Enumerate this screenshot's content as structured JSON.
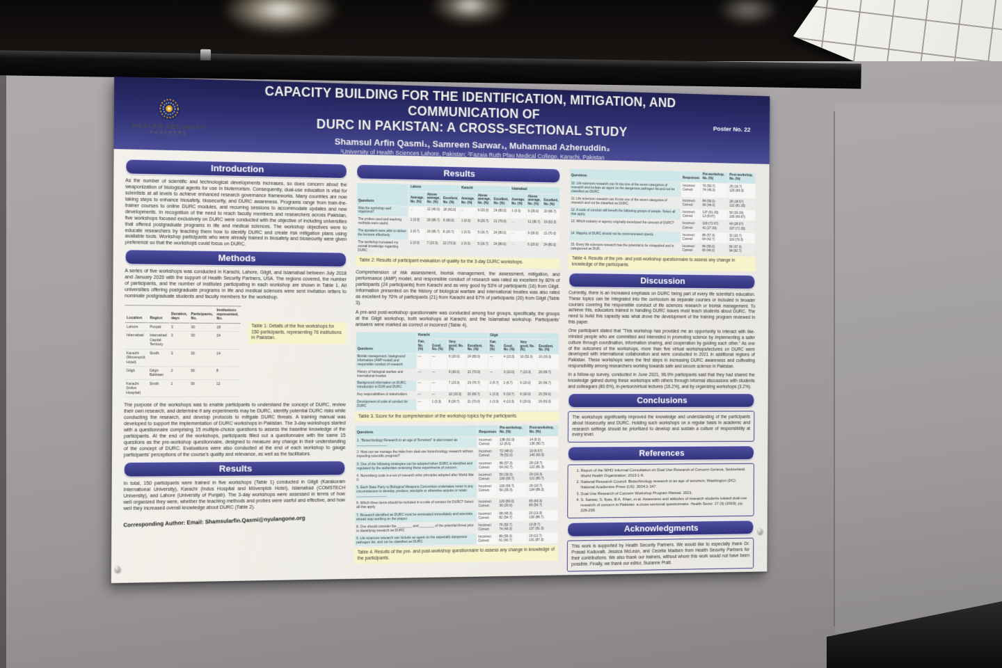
{
  "colors": {
    "header_navy": "#2e2f70",
    "section_bar_navy": "#31327c",
    "caption_highlight_yellow": "#f7f3cb",
    "table_header_teal": "#cde6e9",
    "poster_paper": "#f1efe9",
    "board_gray": "#a29ea1"
  },
  "header": {
    "title_line1": "CAPACITY BUILDING FOR THE IDENTIFICATION, MITIGATION, AND COMMUNICATION OF",
    "title_line2": "DURC IN PAKISTAN: A CROSS-SECTIONAL STUDY",
    "authors": "Shamsul Arfin Qasmi₁, Samreen Sarwar₁, Muhammad Azheruddin₂",
    "affiliations": "¹University of Health Sciences Lahore, Pakistan; ²Fazaia Ruth Pfau Medical College, Karachi, Pakistan",
    "poster_no": "Poster No. 22",
    "logo_line1": "HEALTH SECURITY",
    "logo_line2": "PARTNERS"
  },
  "left": {
    "intro_title": "Introduction",
    "intro_body": "As the number of scientific and technological developments increases, so does concern about the weaponization of biological agents for use in bioterrorism. Consequently, dual-use education is vital for scientists at all levels to achieve enhanced research governance frameworks. Many countries are now taking steps to enhance biosafety, biosecurity, and DURC awareness. Programs range from train-the-trainer courses to online DURC modules, and recurring sessions to accommodate updates and new developments. In recognition of the need to reach faculty members and researchers across Pakistan, five workshops focused exclusively on DURC were conducted with the objective of including universities that offered postgraduate programs in life and medical sciences. The workshop objectives were to educate researchers by teaching them how to identify DURC and create risk mitigation plans using available tools. Workshop participants who were already trained in biosafety and biosecurity were given preference so that the workshops could focus on DURC.",
    "methods_title": "Methods",
    "methods_body": "A series of five workshops was conducted in Karachi, Lahore, Gilgit, and Islamabad between July 2018 and January 2020 with the support of Health Security Partners, USA. The regions covered, the number of participants, and the number of institutes participating in each workshop are shown in Table 1. All universities offering postgraduate programs in life and medical sciences were sent invitation letters to nominate postgraduate students and faculty members for the workshop.",
    "table1": {
      "headers": [
        "Location",
        "Region",
        "Duration, days",
        "Participants, No.",
        "Institutions represented, No."
      ],
      "rows": [
        [
          "Lahore",
          "Punjab",
          "3",
          "30",
          "18"
        ],
        [
          "Islamabad",
          "Islamabad Capital Territory",
          "3",
          "30",
          "24"
        ],
        [
          "Karachi (Movenpick Hotel)",
          "Sindh",
          "3",
          "30",
          "14"
        ],
        [
          "Gilgit",
          "Gilgit-Baltistan",
          "2",
          "30",
          "8"
        ],
        [
          "Karachi (Indus Hospital)",
          "Sindh",
          "1",
          "30",
          "12"
        ]
      ],
      "caption": "Table 1: Details of the five workshops for 150 participants, representing 76 institutions in Pakistan."
    },
    "methods_body2": "The purpose of the workshops was to enable participants to understand the concept of DURC, review their own research, and determine if any experiments may be DURC, identify potential DURC risks while conducting the research, and develop protocols to mitigate DURC threats. A training manual was developed to support the implementation of DURC workshops in Pakistan. The 3-day workshops started with a questionnaire comprising 15 multiple-choice questions to assess the baseline knowledge of the participants. At the end of the workshops, participants filled out a questionnaire with the same 15 questions as the pre-workshop questionnaire, designed to measure any change in their understanding of the concept of DURC. Evaluations were also conducted at the end of each workshop to gauge participants' perceptions of the course's quality and relevance, as well as the facilitators.",
    "results_title": "Results",
    "results_body": "In total, 150 participants were trained in five workshops (Table 1) conducted in Gilgit (Karakoram International University), Karachi (Indus Hospital and Mövenpick Hotel), Islamabad (COMSTECH University), and Lahore (University of Punjab). The 3-day workshops were assessed in terms of how well organized they were, whether the teaching methods and probes were useful and effective, and how well they increased overall knowledge about DURC (Table 2).",
    "corresponding": "Corresponding Author: Email: Shamsularfin.Qasmi@nyulangone.org"
  },
  "middle": {
    "results_title": "Results",
    "table2": {
      "col_questions": "Questions",
      "groups": [
        "Lahore",
        "Karachi",
        "Islamabad"
      ],
      "subheads": [
        "Average, No. (%)",
        "Above average, No. (%)",
        "Excellent, No. (%)"
      ],
      "rows": [
        [
          "Was the workshop well organized?",
          "...",
          "12 (40.0)",
          "18 (60.0)",
          "...",
          "6 (20.0)",
          "24 (80.0)",
          "1 (3.3)",
          "9 (30.0)",
          "20 (66.7)"
        ],
        [
          "The probes used and teaching methods were useful.",
          "1 (3.3)",
          "20 (66.7)",
          "9 (30.0)",
          "1 (3.3)",
          "8 (26.7)",
          "21 (70.0)",
          "...",
          "11 (36.7)",
          "19 (63.3)"
        ],
        [
          "The speakers were able to deliver the lectures effectively.",
          "2 (6.7)",
          "20 (66.7)",
          "8 (26.7)",
          "1 (3.3)",
          "5 (16.7)",
          "24 (80.0)",
          "...",
          "9 (30.0)",
          "21 (70.0)"
        ],
        [
          "The workshop increased my overall knowledge regarding DURC.",
          "1 (3.3)",
          "7 (23.3)",
          "22 (73.3)",
          "1 (3.3)",
          "5 (16.7)",
          "24 (80.0)",
          "...",
          "6 (20.0)",
          "24 (80.0)"
        ]
      ],
      "caption": "Table 2: Results of participant evaluation of quality for the 3-day DURC workshops."
    },
    "para1": "Comprehension of risk assessment, biorisk management, the assessment, mitigation, and performance (AMP) model, and responsible conduct of research was rated as excellent by 80% of participants (24 participants) from Karachi and as very good by 53% of participants (16) from Gilgit. Information presented on the history of biological warfare and international treaties was also rated as excellent by 70% of participants (21) from Karachi and 67% of participants (20) from Gilgit (Table 3).",
    "para2": "A pre-and post-workshop questionnaire was conducted among four groups, specifically, the groups at the Gilgit workshop, both workshops at Karachi, and the Islamabad workshop. Participants' answers were marked as correct or incorrect (Table 4).",
    "table3": {
      "col_questions": "Questions",
      "groups": [
        "Karachi",
        "Gilgit"
      ],
      "subheads": [
        "Fair, No. (%)",
        "Good, No. (%)",
        "Very good, No. (%)",
        "Excellent, No. (%)"
      ],
      "rows": [
        [
          "Biorisk management, background information (AMP model) and responsible conduct of research",
          "—",
          "—",
          "6 (20.0)",
          "24 (80.0)",
          "—",
          "4 (13.3)",
          "16 (53.3)",
          "10 (33.3)"
        ],
        [
          "History of biological warfare and international treaties",
          "—",
          "—",
          "9 (30.0)",
          "21 (70.0)",
          "—",
          "3 (10.0)",
          "7 (23.3)",
          "20 (66.7)"
        ],
        [
          "Background information on DURC, introduction to DUR and DURC",
          "—",
          "—",
          "7 (23.3)",
          "23 (76.7)",
          "2 (6.7)",
          "2 (6.7)",
          "6 (20.0)",
          "20 (66.7)"
        ],
        [
          "Key responsibilities of stakeholders",
          "—",
          "—",
          "10 (33.3)",
          "20 (66.7)",
          "1 (3.3)",
          "5 (16.7)",
          "9 (30.0)",
          "15 (50.0)"
        ],
        [
          "Development of code of conduct for DURC",
          "—",
          "1 (3.3)",
          "8 (26.7)",
          "21 (70.0)",
          "1 (3.3)",
          "4 (13.3)",
          "6 (20.0)",
          "19 (63.3)"
        ]
      ],
      "caption": "Table 3. Score for the comprehension of the workshop topics by the participants."
    },
    "table4": {
      "headers": [
        "Questions",
        "Responses",
        "Pre-workshop, No. (%)",
        "Post-workshop, No. (%)"
      ],
      "rows_1_9": [
        [
          "1. \"Biotechnology Research in an age of Terrorism\" is also known as ________________.",
          "Incorrect\nCorrect",
          "138 (92.0)\n12 (8.0)",
          "14 (9.3)\n136 (90.7)"
        ],
        [
          "2. How can we manage the risks from dual-use biotechnology research without impeding scientific progress?",
          "Incorrect\nCorrect",
          "72 (48.0)\n78 (52.0)",
          "10 (6.67)\n140 (93.3)"
        ],
        [
          "3. One of the following strategies can be adopted when DURC is identified and regulated by the authorities reviewing these experiments of concern.",
          "Incorrect\nCorrect",
          "86 (57.3)\n64 (42.7)",
          "28 (18.7)\n122 (81.3)"
        ],
        [
          "4. Nuremberg code is a set of research ethic principles adopted after World War II.",
          "Incorrect\nCorrect",
          "50 (33.3)\n100 (66.7)",
          "29 (19.3)\n121 (80.7)"
        ],
        [
          "5. Each State Party to Biological Weapons Convention undertakes never in any circumstances to develop, produce, stockpile or otherwise acquire or retain ________________.",
          "Incorrect\nCorrect",
          "100 (66.7)\n50 (33.3)",
          "16 (10.7)\n134 (89.3)"
        ],
        [
          "6. Which three items should be included in a code of conduct for DURC? Select all that apply.",
          "Incorrect\nCorrect",
          "120 (80.0)\n30 (20.0)",
          "65 (43.3)\n85 (56.7)"
        ],
        [
          "7. Research identified as DURC must be terminated immediately and scientists should stop working on the project.",
          "Incorrect\nCorrect",
          "68 (45.3)\n82 (54.7)",
          "20 (13.3)\n130 (86.7)"
        ],
        [
          "8. One should consider the ________ and ________ of the potential threat prior to classifying research as DURC.",
          "Incorrect\nCorrect",
          "76 (50.7)\n74 (49.3)",
          "13 (8.7)\n137 (91.3)"
        ],
        [
          "9. Life sciences research can include an agent on the especially dangerous pathogen list, and not be classified as DURC.",
          "Incorrect\nCorrect",
          "89 (59.3)\n61 (40.7)",
          "19 (12.7)\n131 (87.3)"
        ]
      ],
      "caption": "Table 4. Results of the pre- and post-workshop questionnaire to assess any change in knowledge of the participants."
    }
  },
  "right": {
    "table4_rows_10_15": [
      [
        "10. Life sciences research can fit into one of the seven categories of research and include an agent on the dangerous pathogen list and not be classified as DURC.",
        "Incorrect\nCorrect",
        "76 (50.7)\n74 (49.3)",
        "25 (16.7)\n125 (83.3)"
      ],
      [
        "11. Life sciences research can fit into one of the seven categories of research and not be classified as DURC.",
        "Incorrect\nCorrect",
        "84 (56.0)\n66 (44.0)",
        "28 (18.67)\n122 (81.33)"
      ],
      [
        "12. A code of conduct will benefit the following groups of people. Select all that apply.",
        "Incorrect\nCorrect",
        "137 (91.33)\n13 (8.67)",
        "50 (33.33)\n100 (66.67)"
      ],
      [
        "13. Which industry or agency originally developed the concept of DURC?",
        "Incorrect\nCorrect",
        "109 (72.67)\n41 (27.33)",
        "43 (28.67)\n107 (71.33)"
      ],
      [
        "14. Majority of DURC should not be communicated openly.",
        "Incorrect\nCorrect",
        "86 (57.3)\n64 (42.7)",
        "31 (20.7)\n119 (79.3)"
      ],
      [
        "15. Every life sciences research has the potential to be misapplied and is categorized as DUR.",
        "Incorrect\nCorrect",
        "84 (56.0)\n66 (44.0)",
        "56 (37.3)\n94 (62.7)"
      ]
    ],
    "table4_caption": "Table 4. Results of the pre- and post-workshop questionnaire to assess any change in knowledge of the participants.",
    "discussion_title": "Discussion",
    "discussion_p1": "Currently, there is an increased emphasis on DURC being part of every life scientist's education. These topics can be integrated into the curriculum as separate courses or included in broader courses covering the responsible conduct of life sciences research or biorisk management. To achieve this, educators trained in handling DURC issues must teach students about DURC. The need to build this capacity was what drove the development of the training program reviewed in this paper.",
    "discussion_p2": "One participant stated that \"This workshop has provided me an opportunity to interact with like-minded people who are committed and interested in promoting science by implementing a safer culture through coordination, information sharing, and cooperation by guiding each other.\" As one of the outcomes of the workshops, more than five virtual workshops/lectures on DURC were developed with international collaboration and were conducted in 2021 in additional regions of Pakistan. These workshops were the first steps in increasing DURC awareness and cultivating responsibility among researchers working towards safe and secure science in Pakistan.",
    "discussion_p3": "In a follow-up survey, conducted in June 2021, 96.9% participants said that they had shared the knowledge gained during these workshops with others through informal discussions with students and colleagues (80.6%), in-person/virtual lectures (16.2%), and by organizing workshops (3.2%).",
    "conclusions_title": "Conclusions",
    "conclusions_body": "The workshops significantly improved the knowledge and understanding of the participants about biosecurity and DURC. Holding such workshops on a regular basis in academic and research settings should be prioritized to develop and sustain a culture of responsibility at every level.",
    "references_title": "References",
    "references": [
      "Report of the WHO Informal Consultation on Dual Use Research of Concern Geneva, Switzerland. World Health Organization; 2013:1-9.",
      "National Research Council. Biotechnology research in an age of terrorism. Washington (DC): National Academies Press (US). 2004;1-147.",
      "Dual Use Research of Concern Workshop Program Manual. 2021.",
      "S. Sarwar, S. Ilyas, B.A. Khan, et al. Awareness and attitudes of research students toward dual-use research of concern in Pakistan: a cross-sectional questionnaire. Health Secur. 17 (3) (2019), pp. 229-239."
    ],
    "acknowledgments_title": "Acknowledgments",
    "acknowledgments_body": "This work is supported by Health Security Partners. We would like to especially thank Dr. Prasad Kuduvalli, Jessica McLean, and Cecelia Madsen from Health Security Partners for their contributions. We also thank our trainers, without whom this work would not have been possible. Finally, we thank our editor, Suzanne Pratt."
  }
}
